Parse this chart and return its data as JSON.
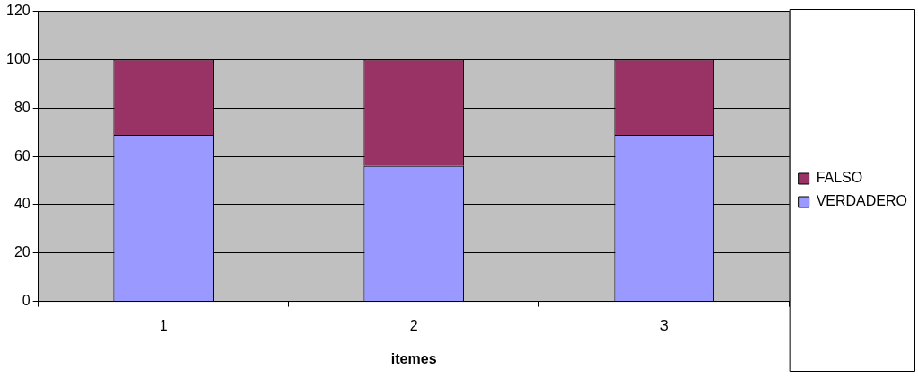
{
  "chart_data": {
    "type": "bar",
    "xlabel": "itemes",
    "categories": [
      "1",
      "2",
      "3"
    ],
    "stacked": true,
    "series": [
      {
        "name": "VERDADERO",
        "color": "#9999ff",
        "values": [
          69,
          56,
          69
        ]
      },
      {
        "name": "FALSO",
        "color": "#993366",
        "values": [
          31,
          44,
          31
        ]
      }
    ],
    "ylim": [
      0,
      120
    ],
    "yticks": [
      0,
      20,
      40,
      60,
      80,
      100,
      120
    ],
    "grid": "y",
    "legend": "right"
  }
}
